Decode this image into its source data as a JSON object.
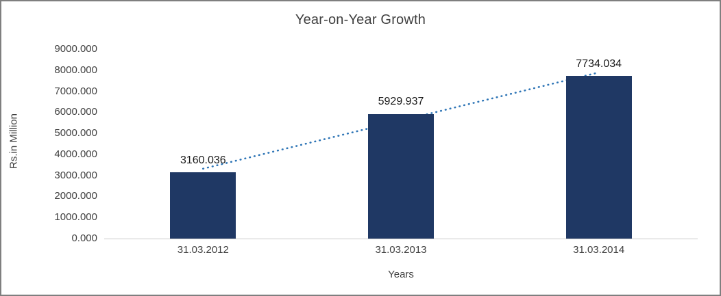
{
  "chart_data": {
    "type": "bar",
    "title": "Year-on-Year Growth",
    "categories": [
      "31.03.2012",
      "31.03.2013",
      "31.03.2014"
    ],
    "values": [
      3160.036,
      5929.937,
      7734.034
    ],
    "data_labels": [
      "3160.036",
      "5929.937",
      "7734.034"
    ],
    "xlabel": "Years",
    "ylabel": "Rs.in Million",
    "ylim": [
      0,
      9000
    ],
    "ytick_step": 1000,
    "ytick_decimals": 3,
    "grid": false,
    "legend": "none",
    "bar_color": "#1F3864",
    "axis_line_color": "#c9c9c9",
    "trendline": {
      "type": "linear",
      "style": "dotted",
      "color": "#2E75B6"
    }
  }
}
